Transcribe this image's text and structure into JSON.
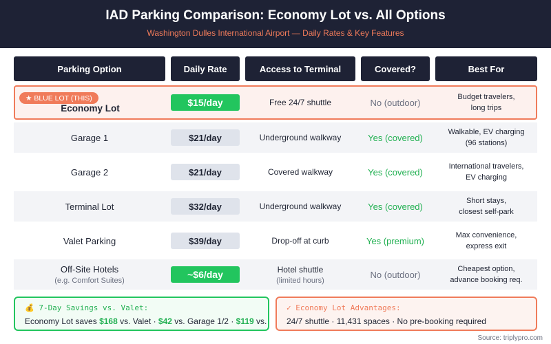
{
  "header": {
    "title": "IAD Parking Comparison: Economy Lot vs. All Options",
    "subtitle": "Washington Dulles International Airport — Daily Rates & Key Features"
  },
  "table": {
    "columns": [
      "Parking Option",
      "Daily Rate",
      "Access to Terminal",
      "Covered?",
      "Best For"
    ],
    "rows": [
      {
        "badge": "★ BLUE LOT (THIS)",
        "option": "Economy Lot",
        "option_sub": "",
        "rate": "$15/day",
        "access": "Free 24/7 shuttle",
        "access_sub": "",
        "covered": "No (outdoor)",
        "best_line1": "Budget travelers,",
        "best_line2": "long trips"
      },
      {
        "option": "Garage 1",
        "option_sub": "",
        "rate": "$21/day",
        "access": "Underground walkway",
        "access_sub": "",
        "covered": "Yes (covered)",
        "best_line1": "Walkable, EV charging",
        "best_line2": "(96 stations)"
      },
      {
        "option": "Garage 2",
        "option_sub": "",
        "rate": "$21/day",
        "access": "Covered walkway",
        "access_sub": "",
        "covered": "Yes (covered)",
        "best_line1": "International travelers,",
        "best_line2": "EV charging"
      },
      {
        "option": "Terminal Lot",
        "option_sub": "",
        "rate": "$32/day",
        "access": "Underground walkway",
        "access_sub": "",
        "covered": "Yes (covered)",
        "best_line1": "Short stays,",
        "best_line2": "closest self-park"
      },
      {
        "option": "Valet Parking",
        "option_sub": "",
        "rate": "$39/day",
        "access": "Drop-off at curb",
        "access_sub": "",
        "covered": "Yes (premium)",
        "best_line1": "Max convenience,",
        "best_line2": "express exit"
      },
      {
        "option": "Off-Site Hotels",
        "option_sub": "(e.g. Comfort Suites)",
        "rate": "~$6/day",
        "access": "Hotel shuttle",
        "access_sub": "(limited hours)",
        "covered": "No (outdoor)",
        "best_line1": "Cheapest option,",
        "best_line2": "advance booking req."
      }
    ]
  },
  "savings": {
    "title": "💰 7-Day Savings vs. Valet:",
    "text_a": "Economy Lot saves ",
    "amount_valet": "$168",
    "text_b": " vs. Valet · ",
    "amount_garage": "$42",
    "text_c": " vs. Garage 1/2 · ",
    "amount_terminal": "$119",
    "text_d": " vs. Te"
  },
  "advantages": {
    "title": "✓ Economy Lot Advantages:",
    "text": "24/7 shuttle · 11,431 spaces · No pre-booking required"
  },
  "source": "Source: triplypro.com",
  "colors": {
    "navy": "#1e2235",
    "accent": "#f07b5a",
    "green": "#22c55e",
    "green_text": "#22b052"
  }
}
